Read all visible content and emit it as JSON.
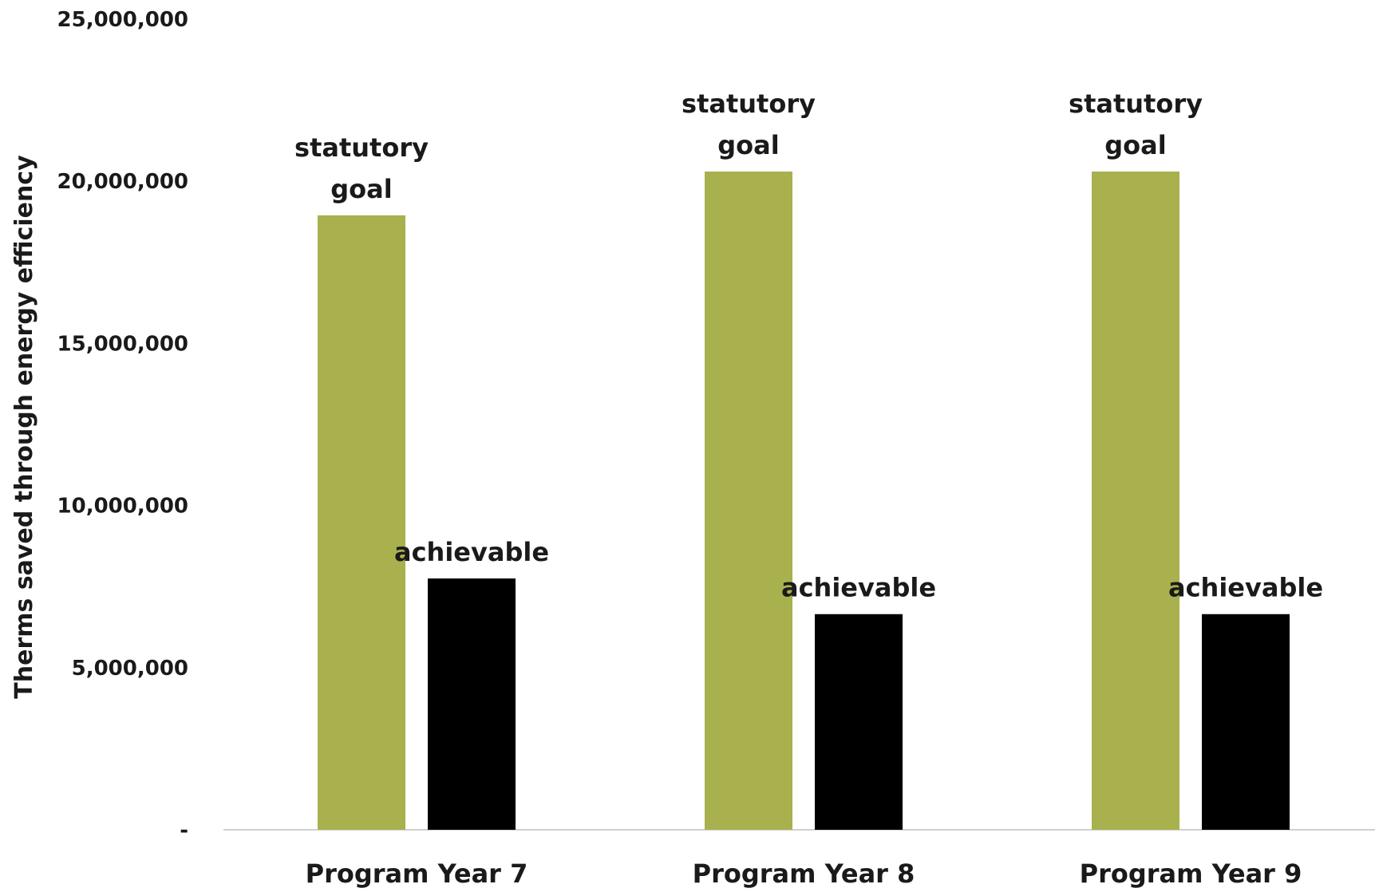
{
  "chart_data": {
    "type": "bar",
    "title": "",
    "xlabel": "",
    "ylabel": "Therms saved through energy efficiency",
    "categories": [
      "Program Year 7",
      "Program Year 8",
      "Program Year 9"
    ],
    "series": [
      {
        "name": "",
        "color": "#A8B14D",
        "values": [
          18950000,
          20300000,
          20300000
        ],
        "labels": [
          [
            "statutory",
            "goal"
          ],
          [
            "statutory",
            "goal"
          ],
          [
            "statutory",
            "goal"
          ]
        ]
      },
      {
        "name": "",
        "color": "#000000",
        "values": [
          7750000,
          6650000,
          6650000
        ],
        "labels": [
          [
            "achievable"
          ],
          [
            "achievable"
          ],
          [
            "achievable"
          ]
        ]
      }
    ],
    "ylim": [
      0,
      25000000
    ],
    "yticks": [
      0,
      5000000,
      10000000,
      15000000,
      20000000,
      25000000
    ],
    "ytick_labels": [
      "-",
      "5,000,000",
      "10,000,000",
      "15,000,000",
      "20,000,000",
      "25,000,000"
    ],
    "grid": false,
    "legend": "none"
  }
}
